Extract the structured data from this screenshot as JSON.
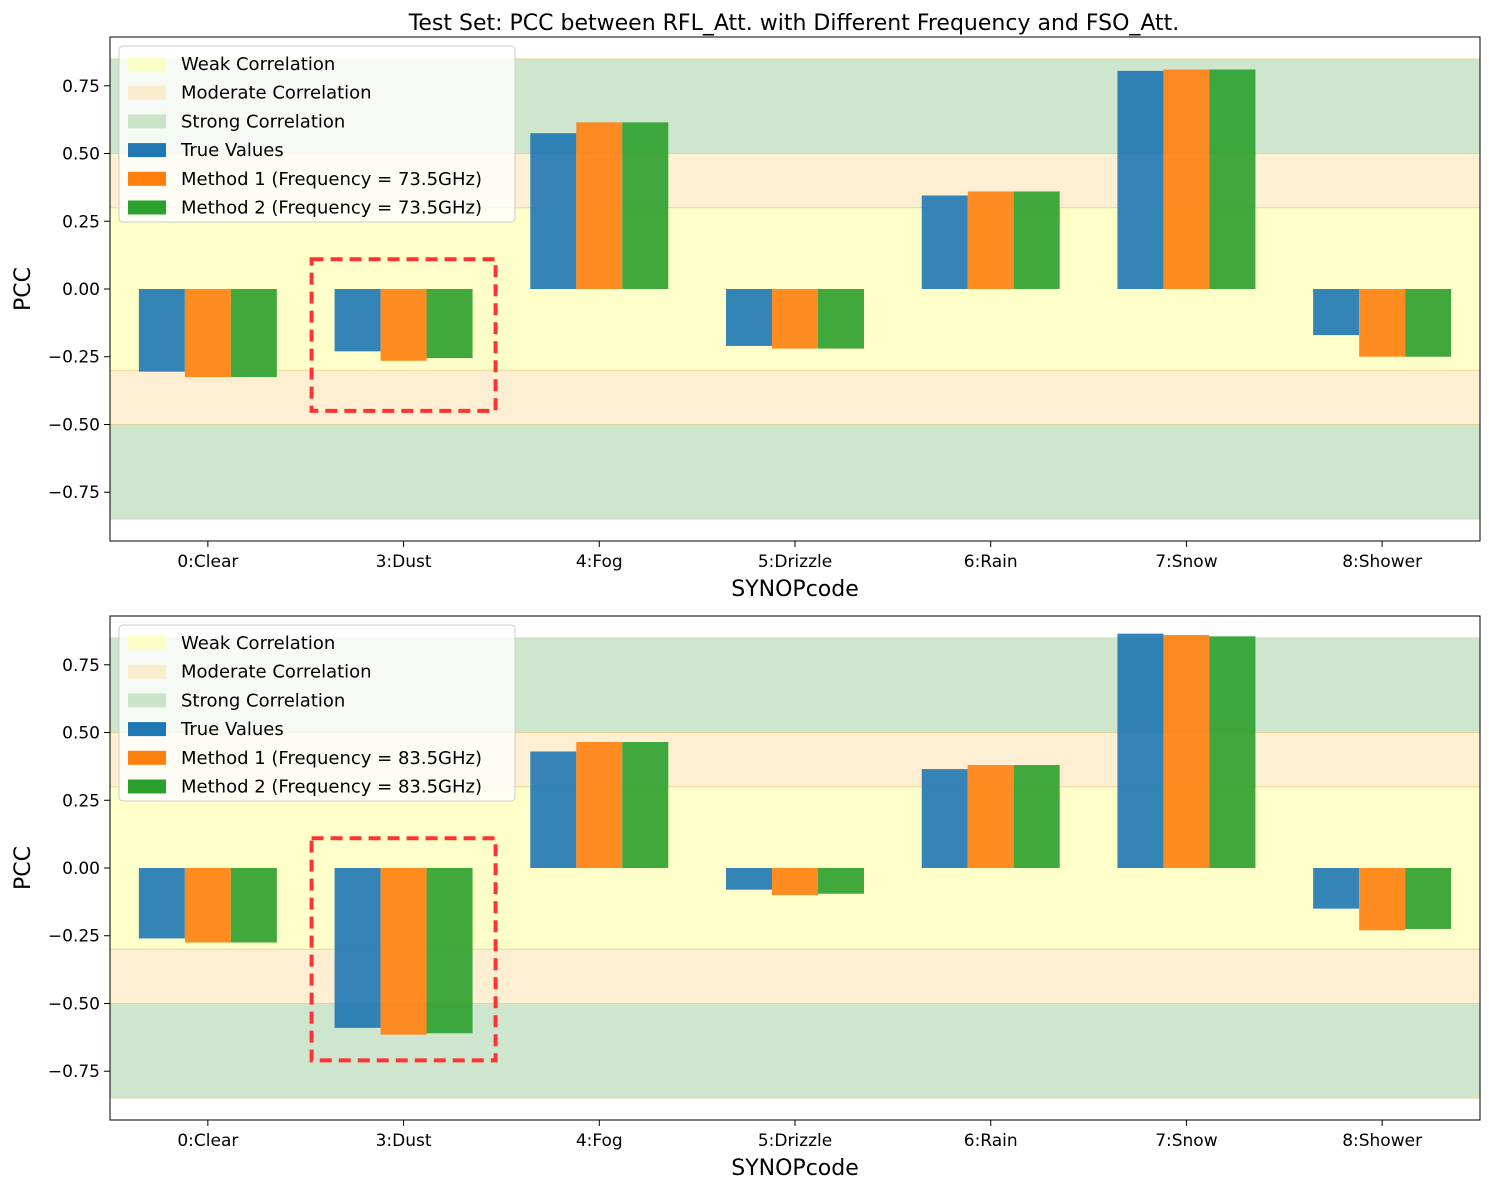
{
  "figure": {
    "title": "Test Set: PCC between RFL_Att. with Different Frequency and FSO_Att."
  },
  "colors": {
    "weak_band": "#ffffa6",
    "moderate_band": "#fde4b4",
    "strong_band": "#add6ad",
    "true_values": "#1f77b4",
    "method1": "#ff7f0e",
    "method2": "#2ca02c",
    "highlight_box": "#ff3333",
    "band_edge": "#e8d080"
  },
  "chart_data": [
    {
      "type": "bar",
      "xlabel": "SYNOPcode",
      "ylabel": "PCC",
      "ylim": [
        -0.93,
        0.93
      ],
      "yticks": [
        "0.75",
        "0.50",
        "0.25",
        "0.00",
        "−0.25",
        "−0.50",
        "−0.75"
      ],
      "ytick_values": [
        0.75,
        0.5,
        0.25,
        0.0,
        -0.25,
        -0.5,
        -0.75
      ],
      "categories": [
        "0:Clear",
        "3:Dust",
        "4:Fog",
        "5:Drizzle",
        "6:Rain",
        "7:Snow",
        "8:Shower"
      ],
      "bands": [
        {
          "name": "Weak Correlation",
          "from": -0.3,
          "to": 0.3,
          "color_key": "weak_band"
        },
        {
          "name": "Moderate Correlation",
          "from": 0.3,
          "to": 0.5,
          "color_key": "moderate_band"
        },
        {
          "name": "Moderate Correlation",
          "from": -0.5,
          "to": -0.3,
          "color_key": "moderate_band"
        },
        {
          "name": "Strong Correlation",
          "from": 0.5,
          "to": 0.85,
          "color_key": "strong_band"
        },
        {
          "name": "Strong Correlation",
          "from": -0.85,
          "to": -0.5,
          "color_key": "strong_band"
        }
      ],
      "series": [
        {
          "name": "True Values",
          "color_key": "true_values",
          "values": [
            -0.305,
            -0.23,
            0.575,
            -0.21,
            0.345,
            0.805,
            -0.17
          ]
        },
        {
          "name": "Method 1 (Frequency = 73.5GHz)",
          "color_key": "method1",
          "values": [
            -0.325,
            -0.265,
            0.615,
            -0.22,
            0.36,
            0.81,
            -0.25
          ]
        },
        {
          "name": "Method 2 (Frequency = 73.5GHz)",
          "color_key": "method2",
          "values": [
            -0.325,
            -0.255,
            0.615,
            -0.22,
            0.36,
            0.81,
            -0.25
          ]
        }
      ],
      "legend": {
        "placement": "upper-left",
        "entries": [
          "Weak Correlation",
          "Moderate Correlation",
          "Strong Correlation",
          "True Values",
          "Method 1 (Frequency = 73.5GHz)",
          "Method 2 (Frequency = 73.5GHz)"
        ]
      },
      "highlight": {
        "category": "3:Dust",
        "y_from": -0.45,
        "y_to": 0.11
      }
    },
    {
      "type": "bar",
      "xlabel": "SYNOPcode",
      "ylabel": "PCC",
      "ylim": [
        -0.93,
        0.93
      ],
      "yticks": [
        "0.75",
        "0.50",
        "0.25",
        "0.00",
        "−0.25",
        "−0.50",
        "−0.75"
      ],
      "ytick_values": [
        0.75,
        0.5,
        0.25,
        0.0,
        -0.25,
        -0.5,
        -0.75
      ],
      "categories": [
        "0:Clear",
        "3:Dust",
        "4:Fog",
        "5:Drizzle",
        "6:Rain",
        "7:Snow",
        "8:Shower"
      ],
      "bands": [
        {
          "name": "Weak Correlation",
          "from": -0.3,
          "to": 0.3,
          "color_key": "weak_band"
        },
        {
          "name": "Moderate Correlation",
          "from": 0.3,
          "to": 0.5,
          "color_key": "moderate_band"
        },
        {
          "name": "Moderate Correlation",
          "from": -0.5,
          "to": -0.3,
          "color_key": "moderate_band"
        },
        {
          "name": "Strong Correlation",
          "from": 0.5,
          "to": 0.85,
          "color_key": "strong_band"
        },
        {
          "name": "Strong Correlation",
          "from": -0.85,
          "to": -0.5,
          "color_key": "strong_band"
        }
      ],
      "series": [
        {
          "name": "True Values",
          "color_key": "true_values",
          "values": [
            -0.26,
            -0.59,
            0.43,
            -0.08,
            0.365,
            0.865,
            -0.15
          ]
        },
        {
          "name": "Method 1 (Frequency = 83.5GHz)",
          "color_key": "method1",
          "values": [
            -0.275,
            -0.615,
            0.465,
            -0.1,
            0.38,
            0.86,
            -0.23
          ]
        },
        {
          "name": "Method 2 (Frequency = 83.5GHz)",
          "color_key": "method2",
          "values": [
            -0.275,
            -0.61,
            0.465,
            -0.095,
            0.38,
            0.855,
            -0.225
          ]
        }
      ],
      "legend": {
        "placement": "upper-left",
        "entries": [
          "Weak Correlation",
          "Moderate Correlation",
          "Strong Correlation",
          "True Values",
          "Method 1 (Frequency = 83.5GHz)",
          "Method 2 (Frequency = 83.5GHz)"
        ]
      },
      "highlight": {
        "category": "3:Dust",
        "y_from": -0.71,
        "y_to": 0.11
      }
    }
  ]
}
